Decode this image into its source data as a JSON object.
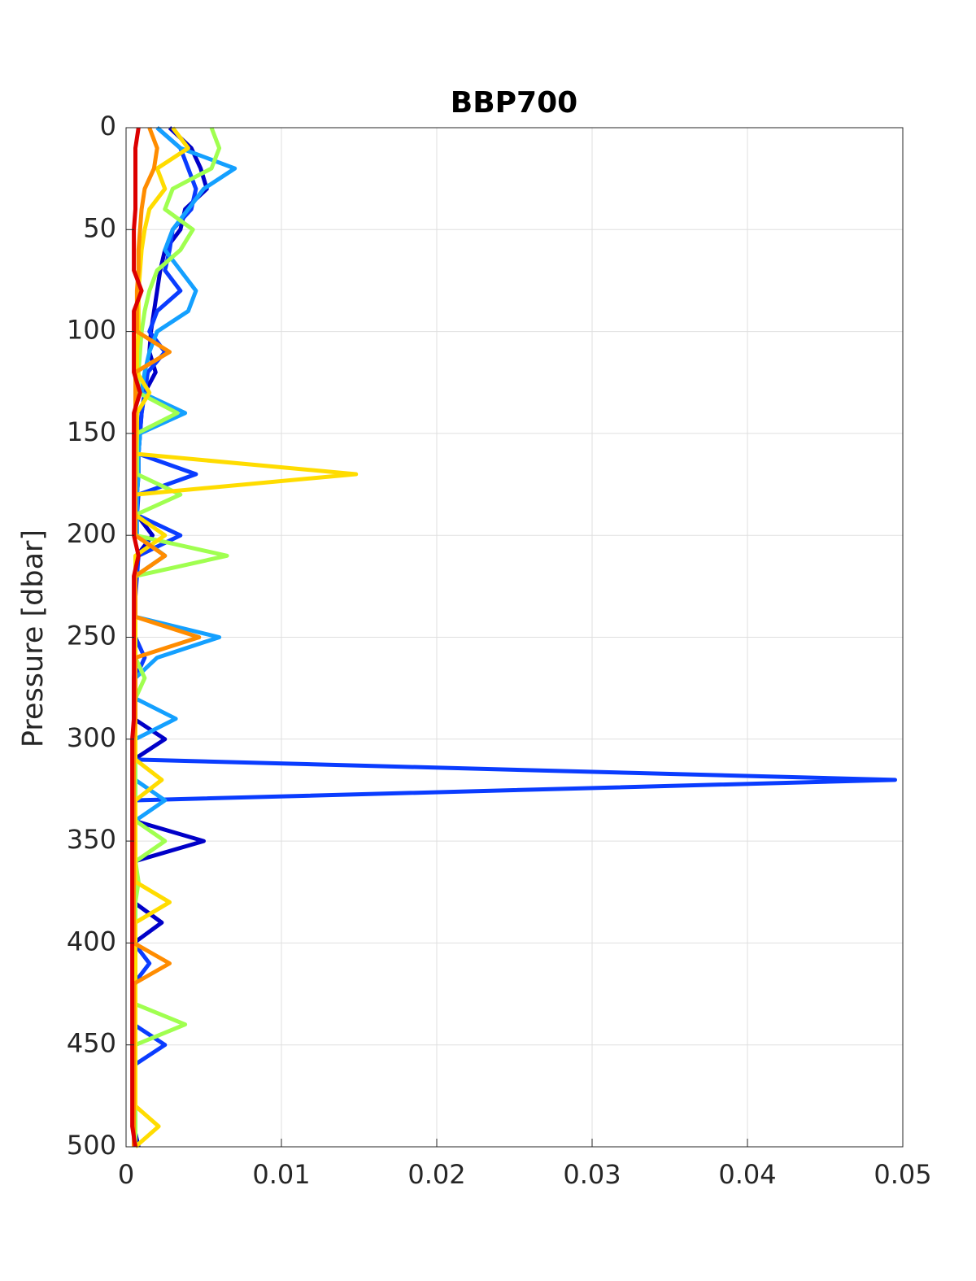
{
  "chart_data": {
    "type": "line",
    "title": "BBP700",
    "ylabel": "Pressure [dbar]",
    "y": [
      0,
      10,
      20,
      30,
      40,
      50,
      60,
      70,
      80,
      90,
      100,
      110,
      120,
      130,
      140,
      150,
      160,
      170,
      180,
      190,
      200,
      210,
      220,
      230,
      240,
      250,
      260,
      270,
      280,
      290,
      300,
      310,
      320,
      330,
      340,
      350,
      360,
      370,
      380,
      390,
      400,
      410,
      420,
      430,
      440,
      450,
      460,
      470,
      480,
      490,
      500
    ],
    "xlim": [
      0,
      0.05
    ],
    "xticks": [
      0,
      0.01,
      0.02,
      0.03,
      0.04,
      0.05
    ],
    "ylim": [
      0,
      500
    ],
    "yticks": [
      0,
      50,
      100,
      150,
      200,
      250,
      300,
      350,
      400,
      450,
      500
    ],
    "y_reversed": true,
    "grid": true,
    "series": [
      {
        "color": "#0000c8",
        "values": [
          0.0028,
          0.0042,
          0.0048,
          0.0052,
          0.0038,
          0.0035,
          0.0025,
          0.0022,
          0.002,
          0.0018,
          0.0016,
          0.0015,
          0.0019,
          0.0012,
          0.001,
          0.0009,
          0.0008,
          0.0008,
          0.0007,
          0.0007,
          0.0017,
          0.0007,
          0.0006,
          0.0006,
          0.0006,
          0.0006,
          0.0006,
          0.0005,
          0.0005,
          0.0005,
          0.0025,
          0.0005,
          0.0005,
          0.0005,
          0.0005,
          0.005,
          0.0005,
          0.0005,
          0.0005,
          0.0023,
          0.0005,
          0.0005,
          0.0005,
          0.0005,
          0.0005,
          0.0005,
          0.0005,
          0.0005,
          0.0005,
          0.0005,
          0.0008
        ]
      },
      {
        "color": "#0a3cff",
        "values": [
          0.002,
          0.0035,
          0.004,
          0.0045,
          0.0042,
          0.003,
          0.0028,
          0.0025,
          0.0035,
          0.002,
          0.0015,
          0.0025,
          0.0014,
          0.0012,
          0.001,
          0.0009,
          0.0008,
          0.0045,
          0.0008,
          0.0007,
          0.0035,
          0.0008,
          0.0007,
          0.0006,
          0.0006,
          0.0006,
          0.0012,
          0.0006,
          0.0006,
          0.0006,
          0.0006,
          0.0006,
          0.0495,
          0.0006,
          0.0006,
          0.0006,
          0.0006,
          0.0005,
          0.0005,
          0.0005,
          0.0005,
          0.0015,
          0.0005,
          0.0005,
          0.0005,
          0.0025,
          0.0005,
          0.0005,
          0.0005,
          0.0005,
          0.0006
        ]
      },
      {
        "color": "#14a0ff",
        "values": [
          0.002,
          0.0035,
          0.007,
          0.005,
          0.004,
          0.003,
          0.0025,
          0.0035,
          0.0045,
          0.004,
          0.002,
          0.0015,
          0.0012,
          0.001,
          0.0038,
          0.0009,
          0.0008,
          0.0008,
          0.0007,
          0.0007,
          0.0007,
          0.0025,
          0.0006,
          0.0006,
          0.0006,
          0.006,
          0.002,
          0.0006,
          0.0006,
          0.0032,
          0.0006,
          0.0006,
          0.0006,
          0.0025,
          0.0006,
          0.0006,
          0.0005,
          0.0005,
          0.0005,
          0.0005,
          0.0005,
          0.0005,
          0.0005,
          0.0005,
          0.0005,
          0.0005,
          0.0005,
          0.0005,
          0.0005,
          0.0005,
          0.0005
        ]
      },
      {
        "color": "#a0ff50",
        "values": [
          0.0055,
          0.006,
          0.0055,
          0.003,
          0.0025,
          0.0043,
          0.0035,
          0.002,
          0.0015,
          0.0012,
          0.001,
          0.0009,
          0.0008,
          0.0008,
          0.0033,
          0.0007,
          0.0007,
          0.0007,
          0.0035,
          0.0006,
          0.0006,
          0.0065,
          0.0006,
          0.0006,
          0.0006,
          0.0006,
          0.0006,
          0.0012,
          0.0006,
          0.0006,
          0.0006,
          0.0006,
          0.0006,
          0.0006,
          0.0006,
          0.0025,
          0.0006,
          0.0008,
          0.0006,
          0.0006,
          0.0006,
          0.0006,
          0.0006,
          0.0006,
          0.0038,
          0.0006,
          0.0006,
          0.0006,
          0.0006,
          0.0006,
          0.0006
        ]
      },
      {
        "color": "#ffdc00",
        "values": [
          0.003,
          0.004,
          0.002,
          0.0025,
          0.0015,
          0.0012,
          0.001,
          0.0009,
          0.0008,
          0.0008,
          0.0008,
          0.0007,
          0.0007,
          0.0015,
          0.0007,
          0.0007,
          0.0006,
          0.0148,
          0.0006,
          0.0006,
          0.0025,
          0.0006,
          0.0006,
          0.0006,
          0.0006,
          0.0006,
          0.0006,
          0.0006,
          0.0006,
          0.0006,
          0.0006,
          0.0006,
          0.0023,
          0.0006,
          0.0006,
          0.0006,
          0.0006,
          0.0006,
          0.0028,
          0.0006,
          0.0006,
          0.0006,
          0.0006,
          0.0006,
          0.0006,
          0.0006,
          0.0006,
          0.0006,
          0.0006,
          0.0021,
          0.0006
        ]
      },
      {
        "color": "#ff8c00",
        "values": [
          0.0015,
          0.002,
          0.0018,
          0.0012,
          0.001,
          0.0009,
          0.0008,
          0.0008,
          0.0007,
          0.0007,
          0.0007,
          0.0028,
          0.0006,
          0.0006,
          0.0006,
          0.0006,
          0.0006,
          0.0006,
          0.0006,
          0.0006,
          0.0006,
          0.0025,
          0.0006,
          0.0006,
          0.0006,
          0.0047,
          0.0006,
          0.0006,
          0.0006,
          0.0006,
          0.0005,
          0.0005,
          0.0005,
          0.0005,
          0.0005,
          0.0005,
          0.0005,
          0.0005,
          0.0005,
          0.0005,
          0.0005,
          0.0028,
          0.0005,
          0.0005,
          0.0005,
          0.0005,
          0.0005,
          0.0005,
          0.0005,
          0.0005,
          0.0005
        ]
      },
      {
        "color": "#dc0000",
        "values": [
          0.0008,
          0.0006,
          0.0006,
          0.0006,
          0.0006,
          0.0005,
          0.0005,
          0.0005,
          0.001,
          0.0005,
          0.0005,
          0.0005,
          0.0005,
          0.0009,
          0.0005,
          0.0005,
          0.0005,
          0.0005,
          0.0005,
          0.0005,
          0.0005,
          0.0008,
          0.0005,
          0.0005,
          0.0005,
          0.0005,
          0.0005,
          0.0005,
          0.0005,
          0.0005,
          0.0004,
          0.0004,
          0.0004,
          0.0004,
          0.0004,
          0.0004,
          0.0004,
          0.0004,
          0.0004,
          0.0004,
          0.0004,
          0.0004,
          0.0004,
          0.0004,
          0.0004,
          0.0004,
          0.0004,
          0.0004,
          0.0004,
          0.0004,
          0.0006
        ]
      }
    ]
  }
}
